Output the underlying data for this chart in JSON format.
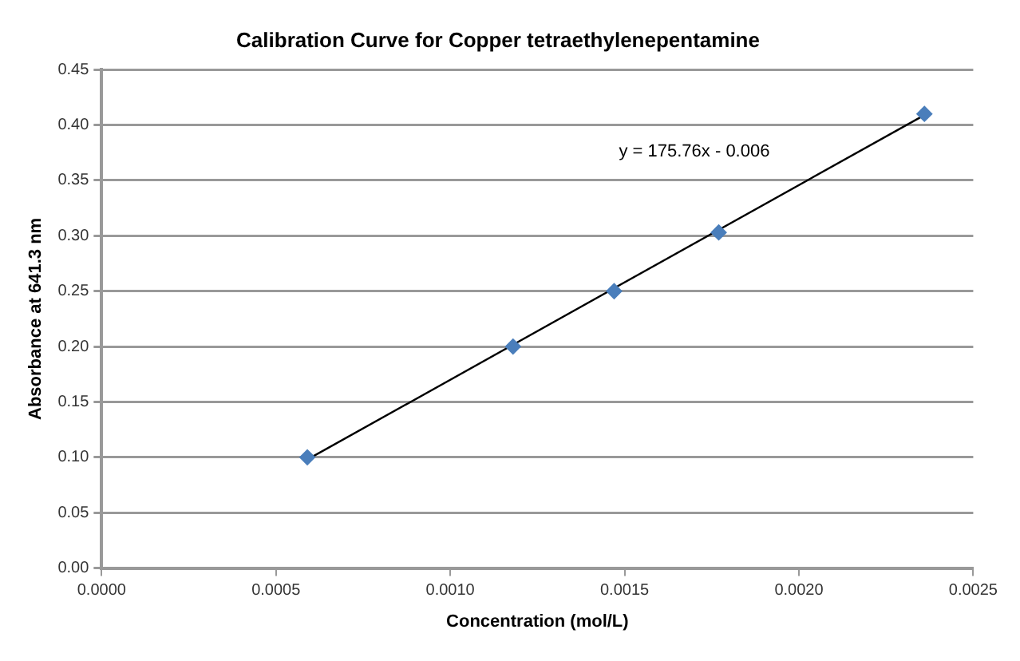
{
  "chart_data": {
    "type": "scatter",
    "title": "Calibration Curve for Copper tetraethylenepentamine",
    "xlabel": "Concentration (mol/L)",
    "ylabel": "Absorbance at 641.3 nm",
    "x": [
      0.00059,
      0.00118,
      0.00147,
      0.00177,
      0.00236
    ],
    "series": [
      {
        "color": "#4a7ebb",
        "values": [
          0.1,
          0.2,
          0.25,
          0.303,
          0.41
        ],
        "marker": "diamond"
      },
      {
        "type": "line",
        "color": "#000000",
        "x": [
          0.00059,
          0.00236
        ],
        "values": [
          0.098,
          0.409
        ],
        "marker": "none"
      }
    ],
    "annotations": [
      "y = 175.76x - 0.006"
    ],
    "xlim": [
      0,
      0.0025
    ],
    "xticks": [
      {
        "value": 0,
        "label": "0.0000"
      },
      {
        "value": 0.0005,
        "label": "0.0005"
      },
      {
        "value": 0.001,
        "label": "0.0010"
      },
      {
        "value": 0.0015,
        "label": "0.0015"
      },
      {
        "value": 0.002,
        "label": "0.0020"
      },
      {
        "value": 0.0025,
        "label": "0.0025"
      }
    ],
    "ylim": [
      0,
      0.45
    ],
    "yticks": [
      {
        "value": 0,
        "label": "0.00"
      },
      {
        "value": 0.05,
        "label": "0.05"
      },
      {
        "value": 0.1,
        "label": "0.10"
      },
      {
        "value": 0.15,
        "label": "0.15"
      },
      {
        "value": 0.2,
        "label": "0.20"
      },
      {
        "value": 0.25,
        "label": "0.25"
      },
      {
        "value": 0.3,
        "label": "0.30"
      },
      {
        "value": 0.35,
        "label": "0.35"
      },
      {
        "value": 0.4,
        "label": "0.40"
      },
      {
        "value": 0.45,
        "label": "0.45"
      }
    ],
    "grid": "y",
    "legend": false
  }
}
